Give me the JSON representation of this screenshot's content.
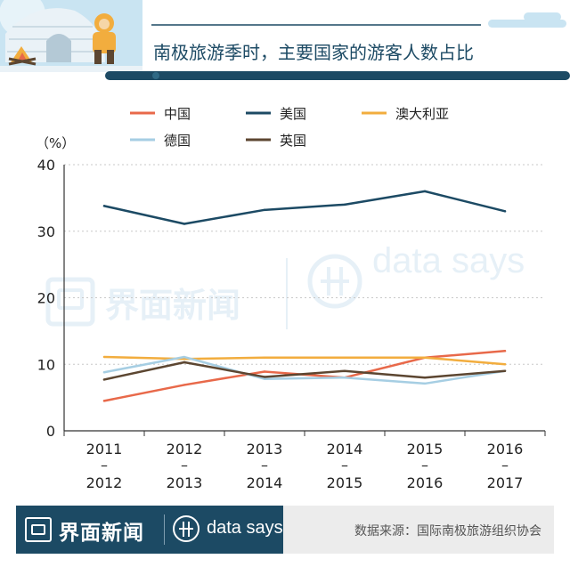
{
  "header": {
    "title": "南极旅游季时，主要国家的游客人数占比"
  },
  "watermark": {
    "brand": "界面新闻",
    "tagline": "data says"
  },
  "footer": {
    "brand": "界面新闻",
    "tagline": "data says",
    "source": "数据来源：国际南极旅游组织协会"
  },
  "colors": {
    "china": "#e8694a",
    "usa": "#1c4a64",
    "australia": "#f2ad3e",
    "germany": "#a6cee3",
    "uk": "#5c4631",
    "header_dark": "#1c4a64",
    "sky": "#c9e4f2"
  },
  "chart_data": {
    "type": "line",
    "title": "南极旅游季时，主要国家的游客人数占比",
    "ylabel": "（%）",
    "xlabel": "",
    "ylim": [
      0,
      40
    ],
    "yticks": [
      0,
      10,
      20,
      30,
      40
    ],
    "grid": true,
    "legend_position": "top",
    "categories": [
      {
        "top": "2011",
        "dash": "–",
        "bottom": "2012"
      },
      {
        "top": "2012",
        "dash": "–",
        "bottom": "2013"
      },
      {
        "top": "2013",
        "dash": "–",
        "bottom": "2014"
      },
      {
        "top": "2014",
        "dash": "–",
        "bottom": "2015"
      },
      {
        "top": "2015",
        "dash": "–",
        "bottom": "2016"
      },
      {
        "top": "2016",
        "dash": "–",
        "bottom": "2017"
      }
    ],
    "series": [
      {
        "key": "china",
        "name": "中国",
        "values": [
          4.5,
          6.9,
          8.9,
          8.0,
          11.0,
          12.0
        ]
      },
      {
        "key": "usa",
        "name": "美国",
        "values": [
          33.8,
          31.1,
          33.2,
          34.0,
          36.0,
          33.0
        ]
      },
      {
        "key": "australia",
        "name": "澳大利亚",
        "values": [
          11.1,
          10.8,
          11.0,
          11.0,
          11.0,
          10.0
        ]
      },
      {
        "key": "germany",
        "name": "德国",
        "values": [
          8.8,
          11.1,
          7.8,
          8.0,
          7.1,
          9.0
        ]
      },
      {
        "key": "uk",
        "name": "英国",
        "values": [
          7.7,
          10.3,
          8.1,
          9.0,
          8.0,
          9.0
        ]
      }
    ]
  }
}
